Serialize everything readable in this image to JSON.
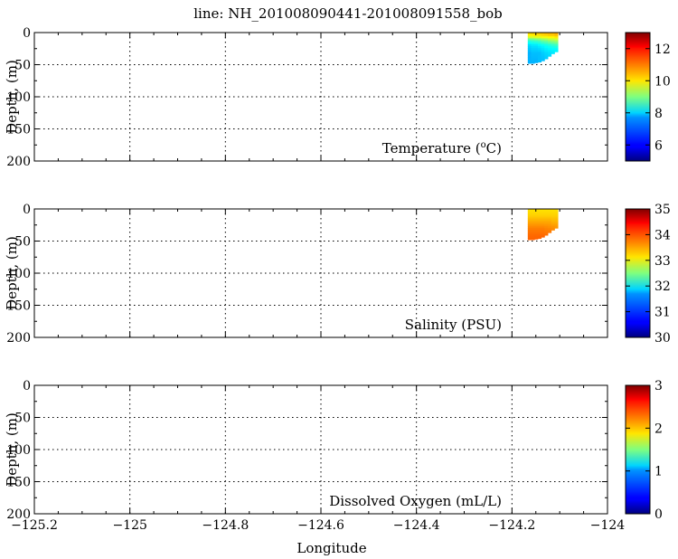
{
  "figure": {
    "title": "line: NH_201008090441-201008091558_bob",
    "xlabel": "Longitude"
  },
  "chart_data": [
    {
      "type": "heatmap",
      "label": "Temperature (",
      "label_sup": "o",
      "label_tail": "C)",
      "xlim": [
        -125.2,
        -124.0
      ],
      "ylim": [
        200,
        0
      ],
      "ylabel": "Depth, (m)",
      "xticks": [
        -125.2,
        -125,
        -124.8,
        -124.6,
        -124.4,
        -124.2,
        -124
      ],
      "yticks": [
        0,
        50,
        100,
        150,
        200
      ],
      "grid": true,
      "colorbar": {
        "min": 5,
        "max": 13,
        "ticks": [
          6,
          8,
          10,
          12
        ]
      },
      "profiles": [
        {
          "lon": -124.163,
          "depth_max": 48,
          "values": [
            [
              0,
              10.3
            ],
            [
              6,
              10.0
            ],
            [
              12,
              8.4
            ],
            [
              20,
              7.7
            ],
            [
              32,
              7.4
            ],
            [
              48,
              7.4
            ]
          ]
        },
        {
          "lon": -124.156,
          "depth_max": 48,
          "values": [
            [
              0,
              10.4
            ],
            [
              6,
              10.0
            ],
            [
              12,
              8.5
            ],
            [
              20,
              7.8
            ],
            [
              32,
              7.5
            ],
            [
              48,
              7.4
            ]
          ]
        },
        {
          "lon": -124.149,
          "depth_max": 47,
          "values": [
            [
              0,
              10.4
            ],
            [
              6,
              10.1
            ],
            [
              12,
              8.6
            ],
            [
              20,
              7.8
            ],
            [
              32,
              7.5
            ],
            [
              47,
              7.4
            ]
          ]
        },
        {
          "lon": -124.142,
          "depth_max": 46,
          "values": [
            [
              0,
              10.5
            ],
            [
              6,
              10.1
            ],
            [
              12,
              8.7
            ],
            [
              20,
              7.9
            ],
            [
              32,
              7.5
            ],
            [
              46,
              7.5
            ]
          ]
        },
        {
          "lon": -124.135,
          "depth_max": 44,
          "values": [
            [
              0,
              10.5
            ],
            [
              6,
              10.2
            ],
            [
              12,
              8.9
            ],
            [
              20,
              8.0
            ],
            [
              32,
              7.6
            ],
            [
              44,
              7.5
            ]
          ]
        },
        {
          "lon": -124.128,
          "depth_max": 41,
          "values": [
            [
              0,
              10.6
            ],
            [
              6,
              10.2
            ],
            [
              12,
              9.0
            ],
            [
              20,
              8.1
            ],
            [
              32,
              7.7
            ],
            [
              41,
              7.6
            ]
          ]
        },
        {
          "lon": -124.121,
          "depth_max": 37,
          "values": [
            [
              0,
              10.6
            ],
            [
              6,
              10.3
            ],
            [
              12,
              9.2
            ],
            [
              20,
              8.2
            ],
            [
              30,
              7.8
            ],
            [
              37,
              7.7
            ]
          ]
        },
        {
          "lon": -124.114,
          "depth_max": 33,
          "values": [
            [
              0,
              10.6
            ],
            [
              6,
              10.3
            ],
            [
              12,
              9.3
            ],
            [
              20,
              8.3
            ],
            [
              28,
              7.9
            ],
            [
              33,
              7.8
            ]
          ]
        },
        {
          "lon": -124.107,
          "depth_max": 30,
          "values": [
            [
              0,
              10.7
            ],
            [
              6,
              10.4
            ],
            [
              12,
              9.4
            ],
            [
              20,
              8.4
            ],
            [
              26,
              8.0
            ],
            [
              30,
              7.9
            ]
          ]
        }
      ]
    },
    {
      "type": "heatmap",
      "label": "Salinity (PSU)",
      "xlim": [
        -125.2,
        -124.0
      ],
      "ylim": [
        200,
        0
      ],
      "ylabel": "Depth, (m)",
      "xticks": [
        -125.2,
        -125,
        -124.8,
        -124.6,
        -124.4,
        -124.2,
        -124
      ],
      "yticks": [
        0,
        50,
        100,
        150,
        200
      ],
      "grid": true,
      "colorbar": {
        "min": 30,
        "max": 35,
        "ticks": [
          30,
          31,
          32,
          33,
          34,
          35
        ]
      },
      "profiles": [
        {
          "lon": -124.163,
          "depth_max": 48,
          "values": [
            [
              0,
              33.25
            ],
            [
              10,
              33.35
            ],
            [
              20,
              33.55
            ],
            [
              30,
              33.75
            ],
            [
              40,
              33.85
            ],
            [
              48,
              33.9
            ]
          ]
        },
        {
          "lon": -124.156,
          "depth_max": 48,
          "values": [
            [
              0,
              33.25
            ],
            [
              10,
              33.35
            ],
            [
              20,
              33.55
            ],
            [
              30,
              33.75
            ],
            [
              40,
              33.85
            ],
            [
              48,
              33.9
            ]
          ]
        },
        {
          "lon": -124.149,
          "depth_max": 47,
          "values": [
            [
              0,
              33.25
            ],
            [
              10,
              33.35
            ],
            [
              20,
              33.55
            ],
            [
              30,
              33.75
            ],
            [
              40,
              33.85
            ],
            [
              47,
              33.9
            ]
          ]
        },
        {
          "lon": -124.142,
          "depth_max": 46,
          "values": [
            [
              0,
              33.25
            ],
            [
              10,
              33.35
            ],
            [
              20,
              33.55
            ],
            [
              30,
              33.75
            ],
            [
              40,
              33.85
            ],
            [
              46,
              33.9
            ]
          ]
        },
        {
          "lon": -124.135,
          "depth_max": 44,
          "values": [
            [
              0,
              33.25
            ],
            [
              10,
              33.35
            ],
            [
              20,
              33.55
            ],
            [
              30,
              33.75
            ],
            [
              40,
              33.85
            ],
            [
              44,
              33.9
            ]
          ]
        },
        {
          "lon": -124.128,
          "depth_max": 41,
          "values": [
            [
              0,
              33.25
            ],
            [
              10,
              33.35
            ],
            [
              20,
              33.55
            ],
            [
              30,
              33.72
            ],
            [
              41,
              33.85
            ]
          ]
        },
        {
          "lon": -124.121,
          "depth_max": 37,
          "values": [
            [
              0,
              33.25
            ],
            [
              10,
              33.35
            ],
            [
              20,
              33.55
            ],
            [
              30,
              33.7
            ],
            [
              37,
              33.8
            ]
          ]
        },
        {
          "lon": -124.114,
          "depth_max": 33,
          "values": [
            [
              0,
              33.25
            ],
            [
              10,
              33.35
            ],
            [
              20,
              33.5
            ],
            [
              28,
              33.65
            ],
            [
              33,
              33.72
            ]
          ]
        },
        {
          "lon": -124.107,
          "depth_max": 30,
          "values": [
            [
              0,
              33.25
            ],
            [
              10,
              33.35
            ],
            [
              20,
              33.5
            ],
            [
              26,
              33.6
            ],
            [
              30,
              33.65
            ]
          ]
        }
      ]
    },
    {
      "type": "heatmap",
      "label": "Dissolved Oxygen (mL/L)",
      "xlim": [
        -125.2,
        -124.0
      ],
      "ylim": [
        200,
        0
      ],
      "ylabel": "Depth, (m)",
      "xticks": [
        -125.2,
        -125,
        -124.8,
        -124.6,
        -124.4,
        -124.2,
        -124
      ],
      "yticks": [
        0,
        50,
        100,
        150,
        200
      ],
      "grid": true,
      "colorbar": {
        "min": 0,
        "max": 3,
        "ticks": [
          0,
          1,
          2,
          3
        ]
      },
      "profiles": []
    }
  ]
}
